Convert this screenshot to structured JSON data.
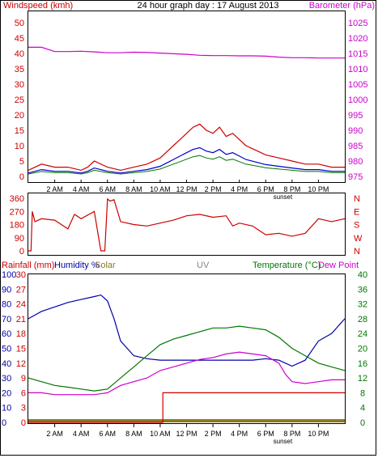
{
  "header": {
    "windspeed_label": "Windspeed (kmh)",
    "title": "24 hour graph day : 17 August 2013",
    "barometer_label": "Barometer (hPa)"
  },
  "middle": {
    "rainfall_label": "Rainfall (mm)",
    "humidity_label": "Humidity %",
    "solar_label": "Solar",
    "uv_label": "UV",
    "temperature_label": "Temperature (°C)",
    "dewpoint_label": "Dew Point"
  },
  "time_ticks": [
    "2 AM",
    "4 AM",
    "6 AM",
    "8 AM",
    "10 AM",
    "12 PM",
    "2 PM",
    "4 PM",
    "6 PM",
    "8 PM",
    "10 PM"
  ],
  "sunset_label": "sunset",
  "colors": {
    "wind": "#cc0000",
    "wind_avg": "#0000cc",
    "gust": "#007700",
    "barometer": "#cc00cc",
    "direction": "#cc0000",
    "humidity": "#0000aa",
    "temperature": "#007700",
    "dewpoint": "#cc00cc",
    "rain": "#cc0000",
    "solar": "#8a7a1a",
    "uv": "#888888"
  },
  "chart_data": [
    {
      "type": "line",
      "title": "24 hour graph day : 17 August 2013",
      "xlabel": "",
      "x_unit": "hour of day",
      "xlim": [
        0,
        24
      ],
      "left_axis": {
        "label": "Windspeed (kmh)",
        "ylim": [
          0,
          50
        ],
        "ticks": [
          0,
          5,
          10,
          15,
          20,
          25,
          30,
          35,
          40,
          45,
          50
        ]
      },
      "right_axis": {
        "label": "Barometer (hPa)",
        "ylim": [
          975,
          1025
        ],
        "ticks": [
          975,
          980,
          985,
          990,
          995,
          1000,
          1005,
          1010,
          1015,
          1020,
          1025
        ]
      },
      "series": [
        {
          "name": "Windspeed (kmh)",
          "axis": "left",
          "x": [
            0,
            1,
            2,
            3,
            4,
            4.5,
            5,
            6,
            7,
            8,
            9,
            10,
            10.5,
            11,
            11.5,
            12,
            12.5,
            13,
            13.5,
            14,
            14.5,
            15,
            15.5,
            16,
            16.5,
            17,
            17.5,
            18,
            19,
            20,
            21,
            22,
            23,
            24
          ],
          "y": [
            2,
            4,
            3,
            3,
            2,
            3,
            5,
            3,
            2,
            3,
            4,
            6,
            8,
            10,
            12,
            14,
            16,
            17,
            15,
            14,
            16,
            13,
            14,
            12,
            10,
            9,
            8,
            7,
            6,
            5,
            4,
            4,
            3,
            3
          ]
        },
        {
          "name": "Barometer (hPa)",
          "axis": "right",
          "x": [
            0,
            1,
            2,
            3,
            4,
            5,
            6,
            7,
            8,
            9,
            10,
            11,
            12,
            13,
            14,
            15,
            16,
            17,
            18,
            19,
            20,
            21,
            22,
            23,
            24
          ],
          "y": [
            1017,
            1017,
            1015.6,
            1015.6,
            1015.7,
            1015.5,
            1015.2,
            1015.2,
            1015.4,
            1015.3,
            1015.1,
            1014.9,
            1014.7,
            1014.4,
            1014.3,
            1014.3,
            1014.2,
            1014.2,
            1014.1,
            1013.8,
            1013.6,
            1013.6,
            1013.5,
            1013.5,
            1013.5
          ]
        }
      ]
    },
    {
      "type": "line",
      "xlim": [
        0,
        24
      ],
      "left_axis": {
        "ticks": [
          0,
          90,
          180,
          270,
          360
        ],
        "ylim": [
          0,
          360
        ]
      },
      "right_axis": {
        "ticks": [
          "N",
          "W",
          "S",
          "E",
          "N"
        ]
      },
      "series": [
        {
          "name": "Wind direction",
          "x": [
            0,
            0.2,
            0.3,
            0.5,
            1,
            2,
            3,
            3.5,
            4,
            5,
            5.5,
            5.8,
            6,
            6.2,
            6.5,
            7,
            8,
            9,
            10,
            11,
            12,
            13,
            14,
            15,
            15.5,
            16,
            17,
            17.5,
            18,
            19,
            20,
            21,
            22,
            23,
            24
          ],
          "y": [
            0,
            0,
            270,
            200,
            220,
            210,
            150,
            250,
            220,
            270,
            0,
            0,
            355,
            340,
            350,
            200,
            180,
            170,
            190,
            210,
            240,
            250,
            230,
            240,
            170,
            190,
            170,
            140,
            110,
            120,
            100,
            120,
            220,
            200,
            220
          ]
        }
      ]
    },
    {
      "type": "line",
      "xlim": [
        0,
        24
      ],
      "left_axes": {
        "Rainfall (mm)": {
          "ticks": [
            0,
            3,
            6,
            9,
            12,
            15,
            18,
            21,
            24,
            27,
            30
          ],
          "ylim": [
            0,
            30
          ]
        },
        "Humidity %": {
          "ticks": [
            0,
            10,
            20,
            30,
            40,
            50,
            60,
            70,
            80,
            90,
            100
          ],
          "ylim": [
            0,
            100
          ]
        }
      },
      "right_axis": {
        "label": "Temperature (°C)",
        "ticks": [
          0,
          4,
          8,
          12,
          16,
          20,
          24,
          28,
          32,
          36,
          40
        ],
        "ylim": [
          0,
          40
        ]
      },
      "series": [
        {
          "name": "Humidity %",
          "axis": "humidity",
          "x": [
            0,
            1,
            2,
            3,
            4,
            5,
            5.5,
            6,
            6.5,
            7,
            8,
            9,
            10,
            11,
            12,
            13,
            14,
            15,
            16,
            17,
            18,
            19,
            19.5,
            20,
            21,
            22,
            23,
            24
          ],
          "y": [
            70,
            75,
            78,
            81,
            83,
            85,
            86,
            82,
            70,
            55,
            45,
            43,
            42,
            42,
            42,
            42,
            42,
            42,
            42,
            42,
            43,
            42,
            40,
            38,
            42,
            55,
            60,
            70
          ]
        },
        {
          "name": "Temperature (°C)",
          "axis": "temperature",
          "x": [
            0,
            1,
            2,
            3,
            4,
            5,
            6,
            7,
            8,
            9,
            10,
            11,
            12,
            13,
            14,
            15,
            16,
            17,
            18,
            19,
            20,
            21,
            22,
            23,
            24
          ],
          "y": [
            12,
            11,
            10,
            9.5,
            9,
            8.5,
            9,
            12,
            15,
            18,
            21,
            22.5,
            23.5,
            24.5,
            25.5,
            25.5,
            26,
            25.5,
            25,
            23,
            20,
            18,
            16,
            15,
            14
          ]
        },
        {
          "name": "Dew Point",
          "axis": "temperature",
          "x": [
            0,
            1,
            2,
            3,
            4,
            5,
            6,
            7,
            8,
            9,
            10,
            11,
            12,
            13,
            14,
            15,
            16,
            17,
            18,
            19,
            19.5,
            20,
            21,
            22,
            23,
            24
          ],
          "y": [
            8,
            8,
            7.5,
            7.5,
            7.5,
            7.5,
            8,
            10,
            11,
            12,
            14,
            15,
            16,
            17,
            17.5,
            18.5,
            19,
            18.5,
            18,
            16,
            13,
            11,
            10.5,
            11,
            11.5,
            11.5
          ]
        },
        {
          "name": "Rainfall (mm)",
          "axis": "rainfall",
          "x": [
            0,
            10.2,
            10.2,
            24
          ],
          "y": [
            0,
            0,
            6,
            6
          ]
        }
      ]
    }
  ]
}
